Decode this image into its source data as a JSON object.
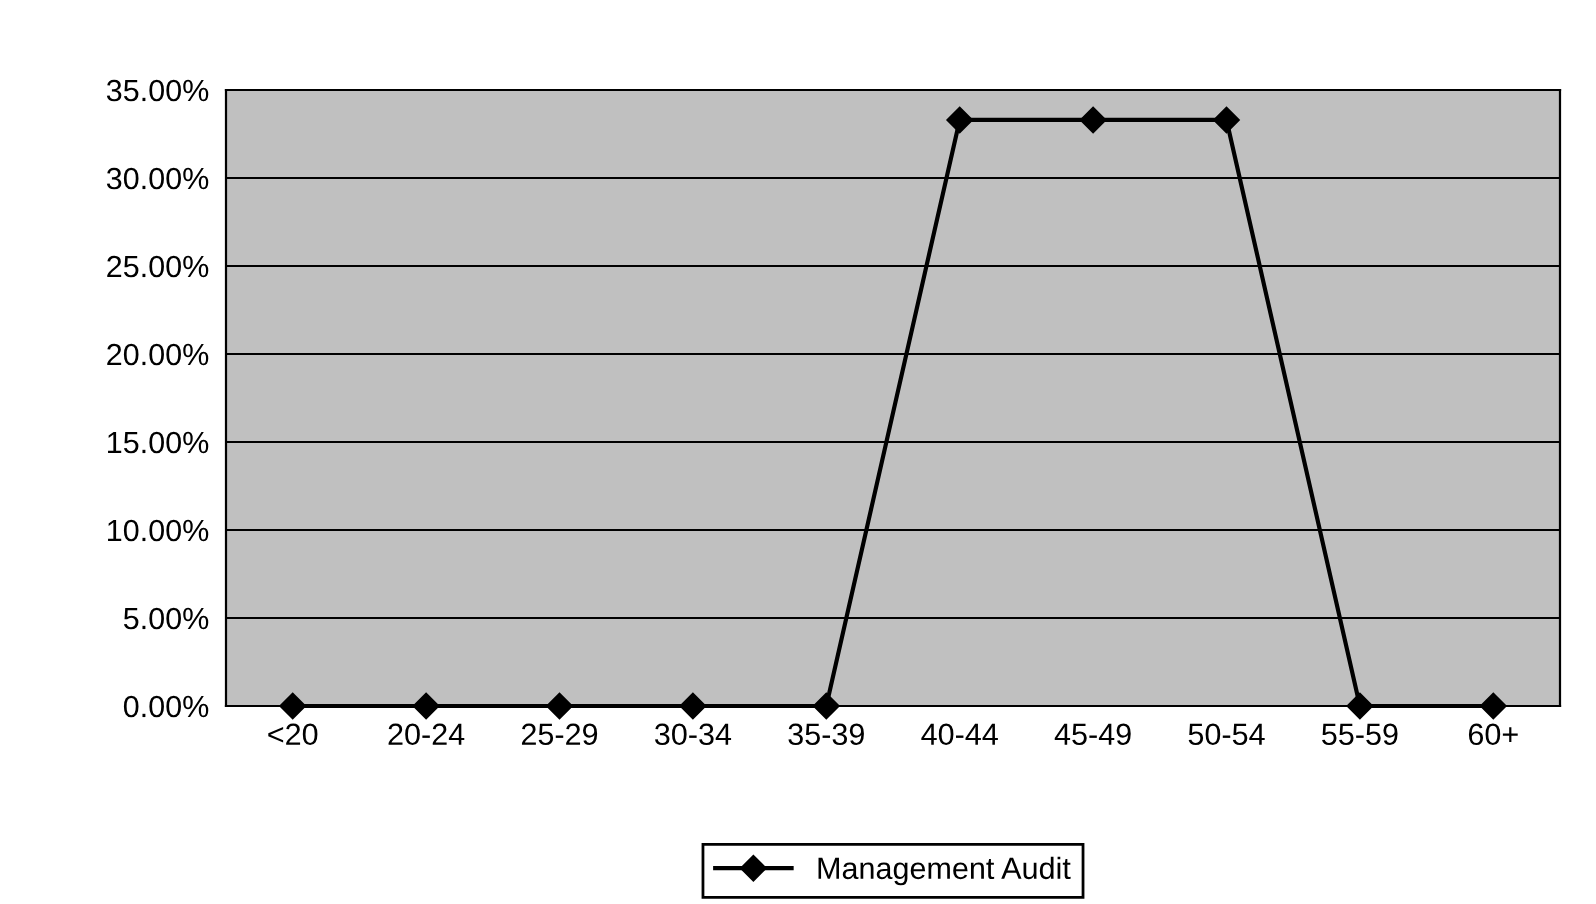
{
  "chart_data": {
    "type": "line",
    "categories": [
      "<20",
      "20-24",
      "25-29",
      "30-34",
      "35-39",
      "40-44",
      "45-49",
      "50-54",
      "55-59",
      "60+"
    ],
    "series": [
      {
        "name": "Management Audit",
        "color": "#000000",
        "values": [
          0,
          0,
          0,
          0,
          0,
          33.3,
          33.3,
          33.3,
          0,
          0
        ]
      }
    ],
    "ylim": [
      0,
      35
    ],
    "yticks": [
      {
        "value": 0,
        "label": "0.00%"
      },
      {
        "value": 5,
        "label": "5.00%"
      },
      {
        "value": 10,
        "label": "10.00%"
      },
      {
        "value": 15,
        "label": "15.00%"
      },
      {
        "value": 20,
        "label": "20.00%"
      },
      {
        "value": 25,
        "label": "25.00%"
      },
      {
        "value": 30,
        "label": "30.00%"
      },
      {
        "value": 35,
        "label": "35.00%"
      }
    ],
    "grid": "y",
    "legend": "bottom",
    "marker": "diamond",
    "line_style": "solid"
  }
}
